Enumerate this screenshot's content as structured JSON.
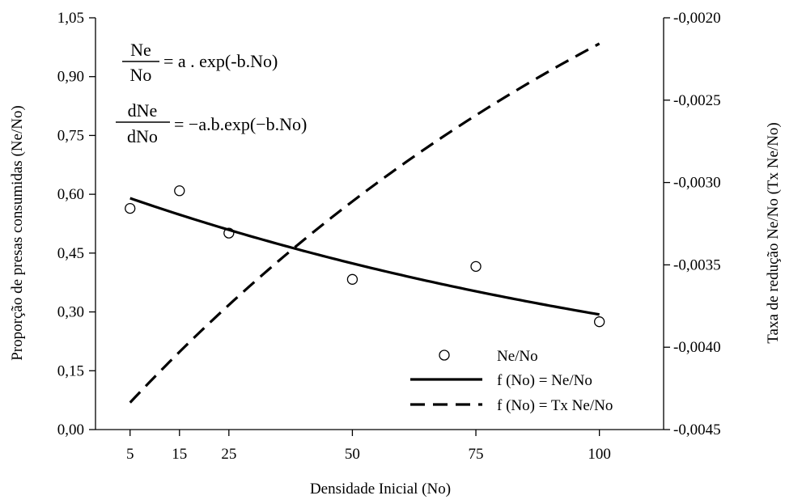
{
  "chart_data": {
    "type": "scatter",
    "xlabel": "Densidade Inicial (No)",
    "ylabel_left": "Proporção de presas consumidas  (Ne/No)",
    "ylabel_right": "Taxa de redução Ne/No (Tx Ne/No)",
    "x_ticks": [
      "5",
      "15",
      "25",
      "50",
      "75",
      "100"
    ],
    "x_tick_values": [
      5,
      15,
      25,
      50,
      75,
      100
    ],
    "xlim": [
      -2,
      113
    ],
    "y_left_ticks": [
      "0,00",
      "0,15",
      "0,30",
      "0,45",
      "0,60",
      "0,75",
      "0,90",
      "1,05"
    ],
    "y_left_tick_values": [
      0,
      0.15,
      0.3,
      0.45,
      0.6,
      0.75,
      0.9,
      1.05
    ],
    "ylim_left": [
      0,
      1.05
    ],
    "y_right_ticks": [
      "-0,0045",
      "-0,0040",
      "-0,0035",
      "-0,0030",
      "-0,0025",
      "-0,0020"
    ],
    "y_right_tick_values": [
      -0.0045,
      -0.004,
      -0.0035,
      -0.003,
      -0.0025,
      -0.002
    ],
    "ylim_right": [
      -0.0045,
      -0.002
    ],
    "grid": false,
    "legend_position": "bottom-right",
    "series": [
      {
        "name": "Ne/No",
        "kind": "scatter",
        "axis": "left",
        "marker": "open-circle",
        "x": [
          5,
          15,
          25,
          50,
          75,
          100
        ],
        "y": [
          0.564,
          0.609,
          0.501,
          0.383,
          0.416,
          0.275
        ]
      },
      {
        "name": "f (No) = Ne/No",
        "kind": "line",
        "axis": "left",
        "style": "solid",
        "a": 0.612,
        "b": 0.00735
      },
      {
        "name": "f (No) = Tx Ne/No",
        "kind": "line",
        "axis": "right",
        "style": "dashed",
        "a": 0.612,
        "b": 0.00735
      }
    ],
    "equations": {
      "eq1": {
        "num": "Ne",
        "den": "No",
        "rhs": "= a . exp(-b.No)"
      },
      "eq2": {
        "num": "dNe",
        "den": "dNo",
        "rhs": "= −a.b.exp(−b.No)"
      }
    }
  }
}
